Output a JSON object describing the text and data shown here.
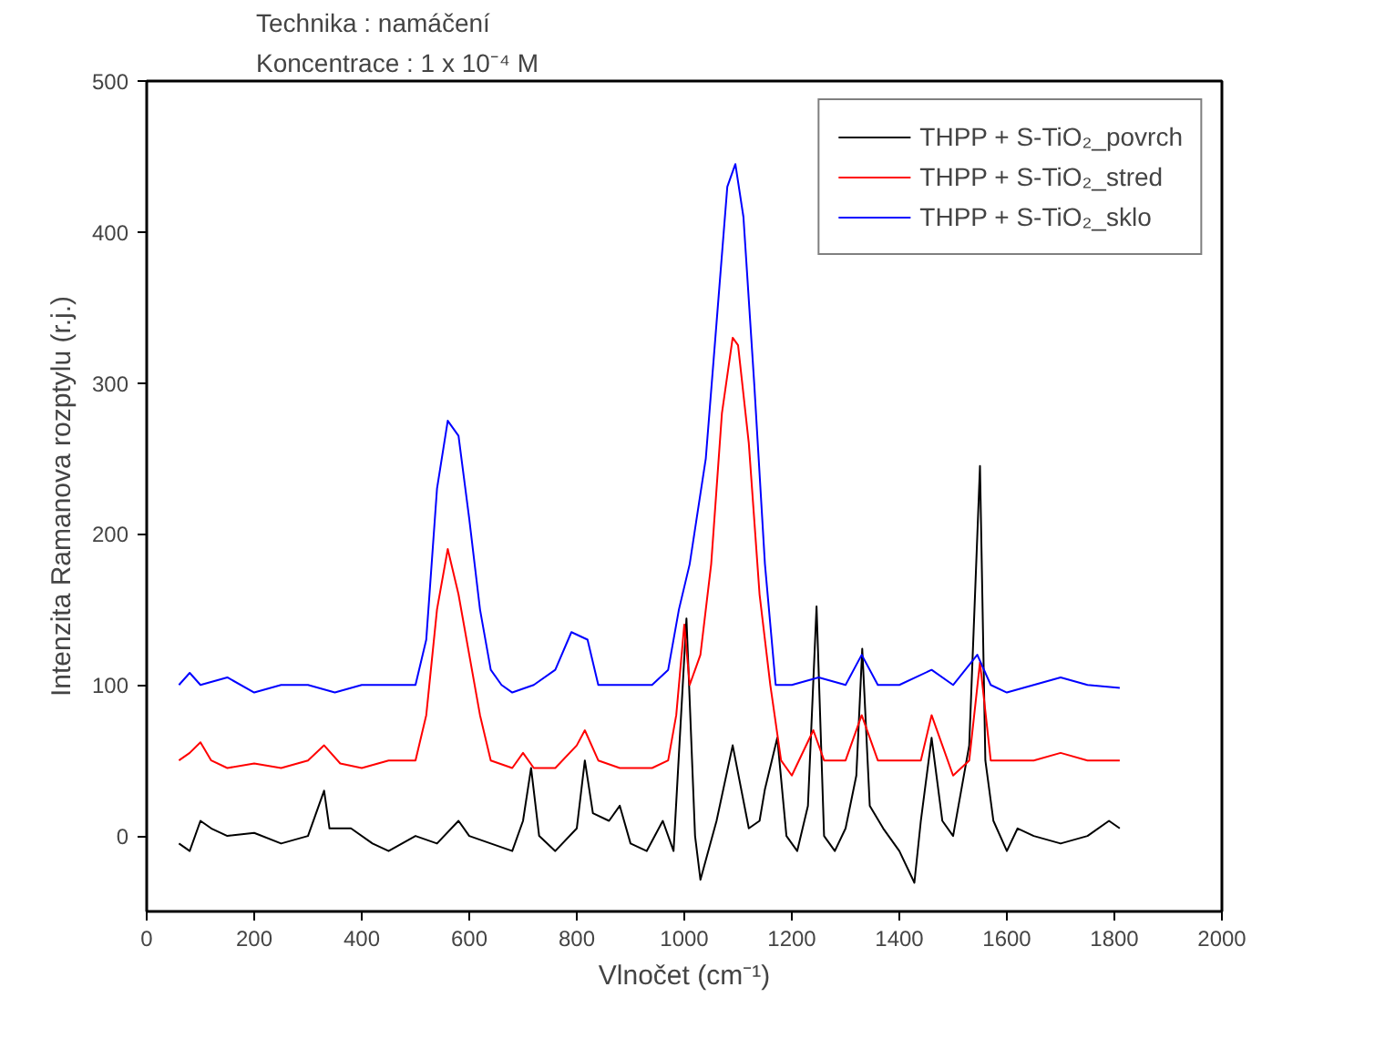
{
  "chart_data": {
    "type": "line",
    "xlabel": "Vlnočet (cm⁻¹)",
    "ylabel": "Intenzita Ramanova rozptylu (r.j.)",
    "annotations": [
      "Technika : namáčení",
      "Koncentrace : 1 x 10⁻⁴ M"
    ],
    "xlim": [
      0,
      2000
    ],
    "xticks": [
      0,
      200,
      400,
      600,
      800,
      1000,
      1200,
      1400,
      1600,
      1800,
      2000
    ],
    "ylim": [
      -50,
      500
    ],
    "yticks": [
      0,
      100,
      200,
      300,
      400,
      500
    ],
    "grid": false,
    "legend": "top right",
    "marker": "none",
    "line_style": "solid",
    "series": [
      {
        "name": "THPP + S-TiO₂_povrch",
        "color": "#000000",
        "x": [
          60,
          80,
          100,
          120,
          150,
          200,
          250,
          300,
          330,
          340,
          380,
          420,
          450,
          500,
          540,
          580,
          600,
          640,
          680,
          700,
          715,
          730,
          760,
          800,
          815,
          830,
          860,
          880,
          900,
          930,
          960,
          980,
          1004,
          1020,
          1030,
          1060,
          1090,
          1120,
          1140,
          1150,
          1173,
          1190,
          1210,
          1230,
          1246,
          1260,
          1280,
          1300,
          1320,
          1331,
          1345,
          1370,
          1400,
          1428,
          1440,
          1460,
          1480,
          1500,
          1530,
          1550,
          1560,
          1575,
          1600,
          1620,
          1650,
          1700,
          1750,
          1790,
          1810
        ],
        "values": [
          -5,
          -10,
          10,
          5,
          0,
          2,
          -5,
          0,
          30,
          5,
          5,
          -5,
          -10,
          0,
          -5,
          10,
          0,
          -5,
          -10,
          10,
          45,
          0,
          -10,
          5,
          50,
          15,
          10,
          20,
          -5,
          -10,
          10,
          -10,
          144,
          0,
          -29,
          10,
          60,
          5,
          10,
          31,
          65,
          0,
          -10,
          20,
          152,
          0,
          -10,
          5,
          40,
          124,
          20,
          5,
          -10,
          -31,
          10,
          65,
          10,
          0,
          60,
          245,
          50,
          10,
          -10,
          5,
          0,
          -5,
          0,
          10,
          5
        ]
      },
      {
        "name": "THPP + S-TiO₂_stred",
        "color": "#ff0000",
        "x": [
          60,
          80,
          100,
          120,
          150,
          200,
          250,
          300,
          330,
          360,
          400,
          450,
          500,
          520,
          540,
          560,
          580,
          600,
          620,
          640,
          680,
          700,
          720,
          760,
          800,
          815,
          840,
          880,
          940,
          970,
          985,
          1000,
          1010,
          1030,
          1050,
          1070,
          1090,
          1100,
          1120,
          1140,
          1160,
          1180,
          1200,
          1240,
          1260,
          1300,
          1330,
          1360,
          1400,
          1440,
          1460,
          1480,
          1500,
          1530,
          1550,
          1570,
          1600,
          1650,
          1700,
          1750,
          1810
        ],
        "values": [
          50,
          55,
          62,
          50,
          45,
          48,
          45,
          50,
          60,
          48,
          45,
          50,
          50,
          80,
          150,
          190,
          160,
          120,
          80,
          50,
          45,
          55,
          45,
          45,
          60,
          70,
          50,
          45,
          45,
          50,
          80,
          140,
          100,
          120,
          180,
          280,
          330,
          325,
          260,
          160,
          100,
          50,
          40,
          70,
          50,
          50,
          80,
          50,
          50,
          50,
          80,
          60,
          40,
          50,
          115,
          50,
          50,
          50,
          55,
          50,
          50
        ]
      },
      {
        "name": "THPP + S-TiO₂_sklo",
        "color": "#0000ff",
        "x": [
          60,
          80,
          100,
          150,
          200,
          250,
          300,
          350,
          400,
          450,
          500,
          520,
          540,
          560,
          580,
          600,
          620,
          640,
          660,
          680,
          720,
          760,
          790,
          820,
          840,
          880,
          940,
          970,
          990,
          1010,
          1040,
          1060,
          1080,
          1095,
          1110,
          1130,
          1150,
          1170,
          1200,
          1250,
          1300,
          1330,
          1360,
          1400,
          1460,
          1500,
          1545,
          1570,
          1600,
          1650,
          1700,
          1750,
          1810
        ],
        "values": [
          100,
          108,
          100,
          105,
          95,
          100,
          100,
          95,
          100,
          100,
          100,
          130,
          230,
          275,
          265,
          210,
          150,
          110,
          100,
          95,
          100,
          110,
          135,
          130,
          100,
          100,
          100,
          110,
          150,
          180,
          250,
          340,
          430,
          445,
          410,
          300,
          180,
          100,
          100,
          105,
          100,
          120,
          100,
          100,
          110,
          100,
          120,
          100,
          95,
          100,
          105,
          100,
          98
        ]
      }
    ]
  }
}
